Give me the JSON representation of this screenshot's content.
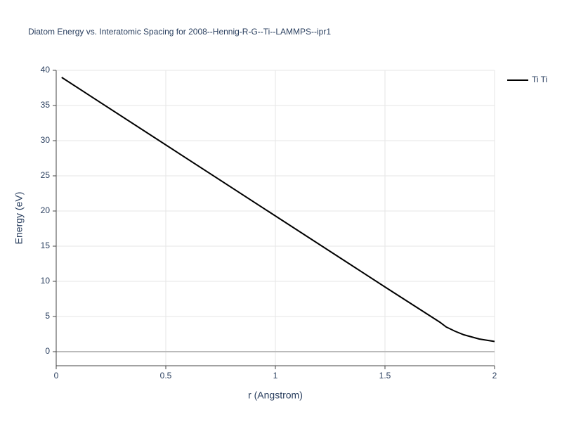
{
  "chart_data": {
    "type": "line",
    "title": "Diatom Energy vs. Interatomic Spacing for 2008--Hennig-R-G--Ti--LAMMPS--ipr1",
    "xlabel": "r (Angstrom)",
    "ylabel": "Energy (eV)",
    "x": [
      0.025,
      0.5,
      1.0,
      1.5,
      1.75,
      1.78,
      1.82,
      1.86,
      1.93,
      2.0
    ],
    "series": [
      {
        "name": "Ti Ti",
        "color": "#000000",
        "values": [
          39,
          29.4,
          19.3,
          9.2,
          4.2,
          3.5,
          2.9,
          2.4,
          1.8,
          1.45
        ]
      }
    ],
    "xlim": [
      0,
      2
    ],
    "xticks": [
      0,
      0.5,
      1,
      1.5,
      2
    ],
    "ylim": [
      -2,
      40
    ],
    "yticks": [
      0,
      5,
      10,
      15,
      20,
      25,
      30,
      35,
      40
    ],
    "grid": true,
    "legend": "right"
  }
}
